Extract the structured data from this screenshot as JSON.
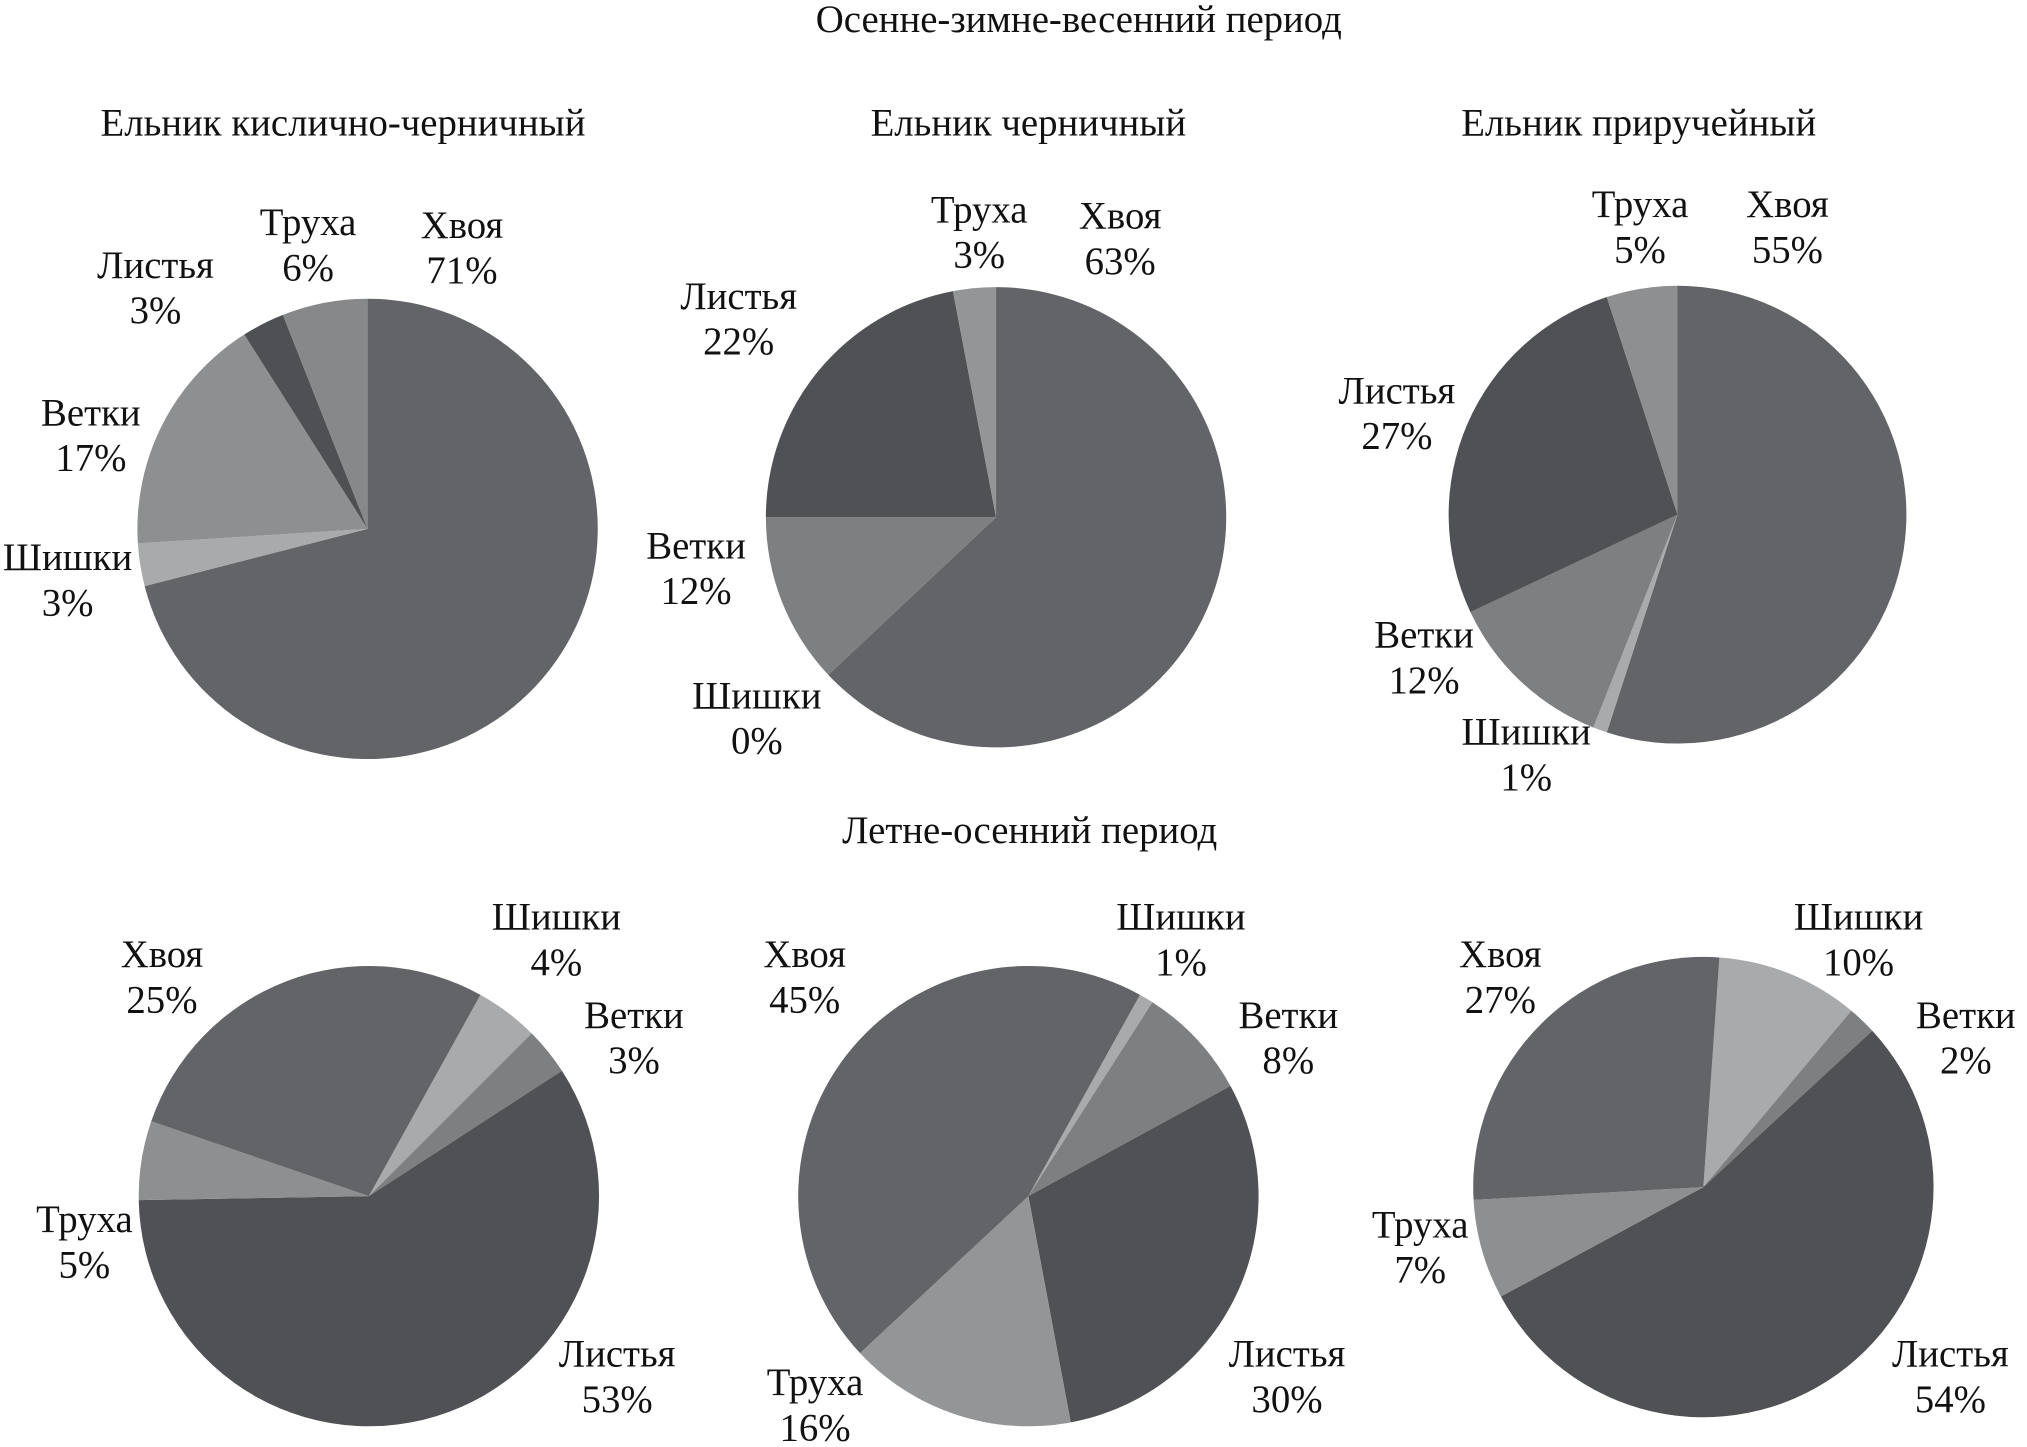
{
  "headings": [
    "Осенне-зимне-весенний период",
    "Летне-осенний период"
  ],
  "chart_data": [
    {
      "type": "pie",
      "title": "Ельник кислично-черничный",
      "categories": [
        "Хвоя",
        "Шишки",
        "Ветки",
        "Листья",
        "Труха"
      ],
      "values": [
        71,
        3,
        17,
        3,
        6
      ],
      "value_labels": [
        "71%",
        "3%",
        "17%",
        "3%",
        "6%"
      ],
      "colors": [
        "#636468",
        "#a9aaac",
        "#8e8f91",
        "#4f5053",
        "#87888a"
      ]
    },
    {
      "type": "pie",
      "title": "Ельник черничный",
      "categories": [
        "Хвоя",
        "Шишки",
        "Ветки",
        "Листья",
        "Труха"
      ],
      "values": [
        63,
        0,
        12,
        22,
        3
      ],
      "value_labels": [
        "63%",
        "0%",
        "12%",
        "22%",
        "3%"
      ],
      "colors": [
        "#636468",
        "#a9aaac",
        "#7e7f81",
        "#505154",
        "#949597"
      ]
    },
    {
      "type": "pie",
      "title": "Ельник приручейный",
      "categories": [
        "Хвоя",
        "Шишки",
        "Ветки",
        "Листья",
        "Труха"
      ],
      "values": [
        55,
        1,
        12,
        27,
        5
      ],
      "value_labels": [
        "55%",
        "1%",
        "12%",
        "27%",
        "5%"
      ],
      "colors": [
        "#636468",
        "#a9aaac",
        "#7e7f81",
        "#505154",
        "#8e8f91"
      ]
    },
    {
      "type": "pie",
      "categories": [
        "Шишки",
        "Ветки",
        "Листья",
        "Труха",
        "Хвоя"
      ],
      "values": [
        4,
        3,
        53,
        5,
        25
      ],
      "value_labels": [
        "4%",
        "3%",
        "53%",
        "5%",
        "25%"
      ],
      "colors": [
        "#a9aaac",
        "#7e7f81",
        "#505154",
        "#8e8f91",
        "#636468"
      ]
    },
    {
      "type": "pie",
      "categories": [
        "Шишки",
        "Ветки",
        "Листья",
        "Труха",
        "Хвоя"
      ],
      "values": [
        1,
        8,
        30,
        16,
        45
      ],
      "value_labels": [
        "1%",
        "8%",
        "30%",
        "16%",
        "45%"
      ],
      "colors": [
        "#a9aaac",
        "#7e7f81",
        "#505154",
        "#949597",
        "#636468"
      ]
    },
    {
      "type": "pie",
      "categories": [
        "Шишки",
        "Ветки",
        "Листья",
        "Труха",
        "Хвоя"
      ],
      "values": [
        10,
        2,
        54,
        7,
        27
      ],
      "value_labels": [
        "10%",
        "2%",
        "54%",
        "7%",
        "27%"
      ],
      "colors": [
        "#a9aaac",
        "#7e7f81",
        "#505154",
        "#8e8f91",
        "#636468"
      ]
    }
  ]
}
